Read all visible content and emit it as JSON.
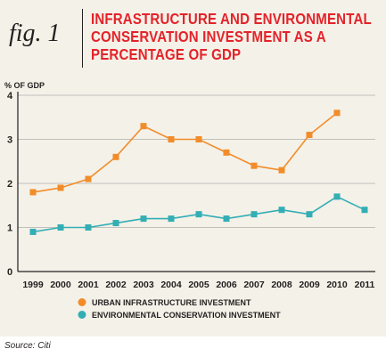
{
  "figure": {
    "label": "fig. 1",
    "title_lines": [
      "INFRASTRUCTURE AND ENVIRONMENTAL",
      "CONSERVATION INVESTMENT AS A",
      "PERCENTAGE OF GDP"
    ]
  },
  "source": "Source: Citi",
  "colors": {
    "title": "#e4232a",
    "urban": "#f28c2a",
    "env": "#33aeb5",
    "axis": "#231f20",
    "grid": "#8a8d8f",
    "panel": "#f4f1e8"
  },
  "chart_data": {
    "type": "line",
    "title": "INFRASTRUCTURE AND ENVIRONMENTAL CONSERVATION INVESTMENT AS A PERCENTAGE OF GDP",
    "ylabel": "% OF GDP",
    "xlabel": "",
    "categories": [
      "1999",
      "2000",
      "2001",
      "2002",
      "2003",
      "2004",
      "2005",
      "2006",
      "2007",
      "2008",
      "2009",
      "2010",
      "2011"
    ],
    "yticks": [
      "0",
      "1",
      "2",
      "3",
      "4"
    ],
    "ylim": [
      0,
      4
    ],
    "grid": true,
    "legend_position": "bottom-left",
    "series": [
      {
        "name": "URBAN INFRASTRUCTURE INVESTMENT",
        "color": "#f28c2a",
        "values": [
          1.8,
          1.9,
          2.1,
          2.6,
          3.3,
          3.0,
          3.0,
          2.7,
          2.4,
          2.3,
          3.1,
          3.6,
          null
        ]
      },
      {
        "name": "ENVIRONMENTAL CONSERVATION INVESTMENT",
        "color": "#33aeb5",
        "values": [
          0.9,
          1.0,
          1.0,
          1.1,
          1.2,
          1.2,
          1.3,
          1.2,
          1.3,
          1.4,
          1.3,
          1.7,
          1.4
        ]
      }
    ]
  }
}
